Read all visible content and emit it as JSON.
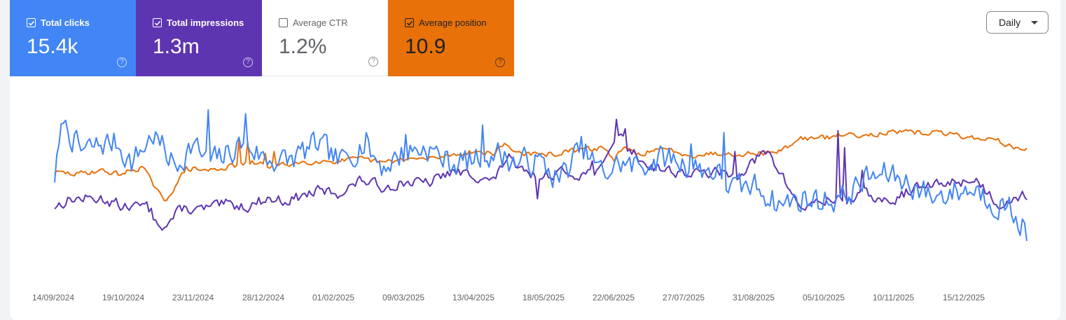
{
  "metrics": {
    "clicks": {
      "label": "Total clicks",
      "value": "15.4k",
      "checked": true,
      "color": "#4285f4"
    },
    "impressions": {
      "label": "Total impressions",
      "value": "1.3m",
      "checked": true,
      "color": "#5e35b1"
    },
    "ctr": {
      "label": "Average CTR",
      "value": "1.2%",
      "checked": false,
      "color": "#ffffff"
    },
    "position": {
      "label": "Average position",
      "value": "10.9",
      "checked": true,
      "color": "#e8710a"
    },
    "help_glyph": "?"
  },
  "granularity": {
    "label": "Daily",
    "icon": "caret-down-icon"
  },
  "chart_data": {
    "type": "line",
    "x_range": [
      "2024-09-14",
      "2026-01-05"
    ],
    "x_ticks": [
      "14/09/2024",
      "19/10/2024",
      "23/11/2024",
      "28/12/2024",
      "01/02/2025",
      "09/03/2025",
      "13/04/2025",
      "18/05/2025",
      "22/06/2025",
      "27/07/2025",
      "31/08/2025",
      "05/10/2025",
      "10/11/2025",
      "15/12/2025"
    ],
    "axes_shown": false,
    "grid": false,
    "series": [
      {
        "key": "clicks",
        "color": "#4285f4",
        "keyframes": [
          [
            0,
            0.55
          ],
          [
            4,
            0.83
          ],
          [
            12,
            0.68
          ],
          [
            22,
            0.72
          ],
          [
            28,
            0.73
          ],
          [
            35,
            0.62
          ],
          [
            45,
            0.77
          ],
          [
            55,
            0.6
          ],
          [
            63,
            0.72
          ],
          [
            70,
            0.62
          ],
          [
            78,
            0.66
          ],
          [
            86,
            0.73
          ],
          [
            96,
            0.64
          ],
          [
            106,
            0.63
          ],
          [
            120,
            0.72
          ],
          [
            130,
            0.62
          ],
          [
            140,
            0.72
          ],
          [
            150,
            0.6
          ],
          [
            160,
            0.68
          ],
          [
            170,
            0.7
          ],
          [
            180,
            0.62
          ],
          [
            190,
            0.63
          ],
          [
            200,
            0.68
          ],
          [
            210,
            0.62
          ],
          [
            220,
            0.63
          ],
          [
            230,
            0.53
          ],
          [
            240,
            0.7
          ],
          [
            250,
            0.56
          ],
          [
            258,
            0.62
          ],
          [
            263,
            0.6
          ],
          [
            270,
            0.62
          ],
          [
            280,
            0.65
          ],
          [
            290,
            0.6
          ],
          [
            300,
            0.58
          ],
          [
            310,
            0.48
          ],
          [
            320,
            0.5
          ],
          [
            330,
            0.4
          ],
          [
            340,
            0.43
          ],
          [
            350,
            0.42
          ],
          [
            360,
            0.44
          ],
          [
            370,
            0.54
          ],
          [
            380,
            0.56
          ],
          [
            390,
            0.51
          ],
          [
            400,
            0.44
          ],
          [
            410,
            0.47
          ],
          [
            420,
            0.48
          ],
          [
            430,
            0.4
          ],
          [
            435,
            0.38
          ],
          [
            443,
            0.26
          ]
        ],
        "noise": 0.1,
        "spikes": [
          [
            4,
            0.83
          ],
          [
            70,
            0.9
          ],
          [
            87,
            0.88
          ],
          [
            142,
            0.78
          ],
          [
            160,
            0.77
          ],
          [
            195,
            0.82
          ],
          [
            290,
            0.72
          ],
          [
            305,
            0.78
          ]
        ]
      },
      {
        "key": "impressions",
        "color": "#5e35b1",
        "keyframes": [
          [
            0,
            0.39
          ],
          [
            8,
            0.43
          ],
          [
            22,
            0.43
          ],
          [
            32,
            0.39
          ],
          [
            42,
            0.39
          ],
          [
            50,
            0.28
          ],
          [
            58,
            0.38
          ],
          [
            65,
            0.37
          ],
          [
            78,
            0.4
          ],
          [
            88,
            0.39
          ],
          [
            96,
            0.43
          ],
          [
            106,
            0.42
          ],
          [
            120,
            0.47
          ],
          [
            130,
            0.46
          ],
          [
            140,
            0.53
          ],
          [
            150,
            0.49
          ],
          [
            160,
            0.52
          ],
          [
            170,
            0.51
          ],
          [
            180,
            0.57
          ],
          [
            190,
            0.56
          ],
          [
            200,
            0.52
          ],
          [
            207,
            0.67
          ],
          [
            210,
            0.58
          ],
          [
            220,
            0.55
          ],
          [
            230,
            0.57
          ],
          [
            240,
            0.56
          ],
          [
            250,
            0.59
          ],
          [
            256,
            0.79
          ],
          [
            262,
            0.69
          ],
          [
            270,
            0.61
          ],
          [
            280,
            0.58
          ],
          [
            290,
            0.56
          ],
          [
            300,
            0.57
          ],
          [
            310,
            0.55
          ],
          [
            320,
            0.64
          ],
          [
            325,
            0.68
          ],
          [
            330,
            0.58
          ],
          [
            340,
            0.38
          ],
          [
            350,
            0.42
          ],
          [
            360,
            0.42
          ],
          [
            370,
            0.46
          ],
          [
            380,
            0.4
          ],
          [
            390,
            0.48
          ],
          [
            400,
            0.5
          ],
          [
            410,
            0.52
          ],
          [
            420,
            0.53
          ],
          [
            430,
            0.4
          ],
          [
            437,
            0.44
          ],
          [
            443,
            0.45
          ]
        ],
        "noise": 0.04,
        "spikes": [
          [
            30,
            0.37
          ],
          [
            45,
            0.32
          ],
          [
            220,
            0.43
          ],
          [
            245,
            0.63
          ],
          [
            255,
            0.73
          ],
          [
            256,
            0.85
          ],
          [
            260,
            0.8
          ],
          [
            310,
            0.68
          ],
          [
            325,
            0.68
          ],
          [
            357,
            0.79
          ],
          [
            360,
            0.7
          ],
          [
            368,
            0.58
          ]
        ]
      },
      {
        "key": "position",
        "color": "#e8710a",
        "keyframes": [
          [
            0,
            0.57
          ],
          [
            10,
            0.56
          ],
          [
            20,
            0.58
          ],
          [
            30,
            0.56
          ],
          [
            40,
            0.6
          ],
          [
            50,
            0.41
          ],
          [
            60,
            0.59
          ],
          [
            70,
            0.58
          ],
          [
            80,
            0.6
          ],
          [
            90,
            0.62
          ],
          [
            100,
            0.6
          ],
          [
            110,
            0.62
          ],
          [
            120,
            0.63
          ],
          [
            130,
            0.63
          ],
          [
            140,
            0.64
          ],
          [
            150,
            0.62
          ],
          [
            160,
            0.64
          ],
          [
            170,
            0.64
          ],
          [
            180,
            0.66
          ],
          [
            190,
            0.68
          ],
          [
            200,
            0.67
          ],
          [
            205,
            0.72
          ],
          [
            210,
            0.68
          ],
          [
            220,
            0.66
          ],
          [
            230,
            0.67
          ],
          [
            240,
            0.69
          ],
          [
            250,
            0.7
          ],
          [
            255,
            0.64
          ],
          [
            260,
            0.7
          ],
          [
            265,
            0.66
          ],
          [
            270,
            0.68
          ],
          [
            280,
            0.69
          ],
          [
            290,
            0.66
          ],
          [
            300,
            0.67
          ],
          [
            310,
            0.67
          ],
          [
            320,
            0.67
          ],
          [
            330,
            0.68
          ],
          [
            340,
            0.75
          ],
          [
            350,
            0.75
          ],
          [
            360,
            0.77
          ],
          [
            370,
            0.77
          ],
          [
            380,
            0.78
          ],
          [
            390,
            0.78
          ],
          [
            400,
            0.78
          ],
          [
            410,
            0.77
          ],
          [
            420,
            0.75
          ],
          [
            430,
            0.74
          ],
          [
            440,
            0.68
          ],
          [
            443,
            0.71
          ]
        ],
        "noise": 0.02,
        "spikes": [
          [
            84,
            0.74
          ],
          [
            88,
            0.73
          ],
          [
            96,
            0.67
          ],
          [
            100,
            0.68
          ]
        ]
      }
    ]
  }
}
